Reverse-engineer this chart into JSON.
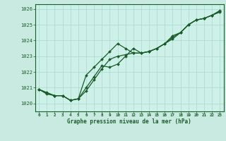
{
  "title": "Graphe pression niveau de la mer (hPa)",
  "background_color": "#c8eae0",
  "plot_bg_color": "#cdf0e8",
  "grid_color": "#a8d8cc",
  "line_color": "#1a5c2a",
  "marker_color": "#1a5c2a",
  "xlim": [
    -0.5,
    23.5
  ],
  "ylim": [
    1019.5,
    1026.3
  ],
  "yticks": [
    1020,
    1021,
    1022,
    1023,
    1024,
    1025,
    1026
  ],
  "xticks": [
    0,
    1,
    2,
    3,
    4,
    5,
    6,
    7,
    8,
    9,
    10,
    11,
    12,
    13,
    14,
    15,
    16,
    17,
    18,
    19,
    20,
    21,
    22,
    23
  ],
  "series": [
    [
      1020.9,
      1020.7,
      1020.5,
      1020.5,
      1020.2,
      1020.3,
      1021.8,
      1022.3,
      1022.8,
      1023.3,
      1023.8,
      1023.5,
      1023.2,
      1023.2,
      1023.3,
      1023.5,
      1023.8,
      1024.1,
      1024.5,
      1025.0,
      1025.3,
      1025.4,
      1025.6,
      1025.8
    ],
    [
      1020.9,
      1020.6,
      1020.5,
      1020.5,
      1020.2,
      1020.3,
      1021.0,
      1021.7,
      1022.4,
      1022.3,
      1022.5,
      1023.0,
      1023.5,
      1023.2,
      1023.3,
      1023.5,
      1023.8,
      1024.3,
      1024.5,
      1025.0,
      1025.3,
      1025.4,
      1025.6,
      1025.9
    ],
    [
      1020.9,
      1020.65,
      1020.5,
      1020.5,
      1020.2,
      1020.3,
      1020.8,
      1021.5,
      1022.2,
      1022.8,
      1023.0,
      1023.1,
      1023.2,
      1023.2,
      1023.3,
      1023.5,
      1023.8,
      1024.2,
      1024.5,
      1025.0,
      1025.3,
      1025.4,
      1025.6,
      1025.85
    ]
  ]
}
